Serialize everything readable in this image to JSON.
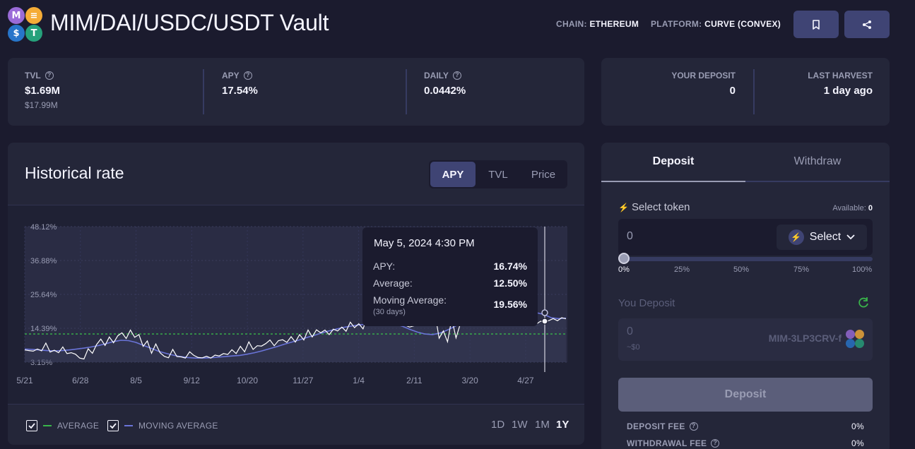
{
  "header": {
    "title": "MIM/DAI/USDC/USDT Vault",
    "chain_label": "CHAIN:",
    "chain_value": "ETHEREUM",
    "platform_label": "PLATFORM:",
    "platform_value": "CURVE (CONVEX)",
    "coins": [
      "MIM",
      "DAI",
      "USDC",
      "USDT"
    ]
  },
  "stats": {
    "tvl_label": "TVL",
    "tvl_value": "$1.69M",
    "tvl_sub": "$17.99M",
    "apy_label": "APY",
    "apy_value": "17.54%",
    "daily_label": "DAILY",
    "daily_value": "0.0442%"
  },
  "user": {
    "deposit_label": "YOUR DEPOSIT",
    "deposit_value": "0",
    "harvest_label": "LAST HARVEST",
    "harvest_value": "1 day ago"
  },
  "history": {
    "title": "Historical rate",
    "tabs": [
      "APY",
      "TVL",
      "Price"
    ],
    "active_tab": "APY",
    "legend_average": "AVERAGE",
    "legend_moving": "MOVING AVERAGE",
    "ranges": [
      "1D",
      "1W",
      "1M",
      "1Y"
    ],
    "active_range": "1Y"
  },
  "chart_data": {
    "type": "line",
    "yticks": [
      "48.12%",
      "36.88%",
      "25.64%",
      "14.39%",
      "3.15%"
    ],
    "ylim": [
      3.15,
      48.12
    ],
    "xticks": [
      "5/21",
      "6/28",
      "8/5",
      "9/12",
      "10/20",
      "11/27",
      "1/4",
      "2/11",
      "3/20",
      "4/27"
    ],
    "average": 12.5,
    "series": [
      {
        "name": "APY",
        "values": [
          7.2,
          7.0,
          6.8,
          7.5,
          6.9,
          9.5,
          6.5,
          7.1,
          6.3,
          8.2,
          6.0,
          6.3,
          5.8,
          4.5,
          4.2,
          7.6,
          6.1,
          9.0,
          10.8,
          8.7,
          11.5,
          9.6,
          11.9,
          12.9,
          11.0,
          13.8,
          11.4,
          12.3,
          8.4,
          10.2,
          6.1,
          9.2,
          6.3,
          5.1,
          4.6,
          7.4,
          5.0,
          4.9,
          4.5,
          6.6,
          5.4,
          4.7,
          4.6,
          5.1,
          4.5,
          5.5,
          5.2,
          6.0,
          5.7,
          7.3,
          6.0,
          8.4,
          6.6,
          9.9,
          7.4,
          8.6,
          8.5,
          9.3,
          10.5,
          8.6,
          10.3,
          10.6,
          9.7,
          11.6,
          9.8,
          12.3,
          10.5,
          13.8,
          11.5,
          13.9,
          12.9,
          13.8,
          12.3,
          14.1,
          13.5,
          14.8,
          13.4,
          16.4,
          14.6,
          15.9,
          14.2,
          18.0,
          15.6,
          16.7,
          15.4,
          17.5,
          16.2,
          18.6,
          16.9,
          16.0,
          15.4,
          14.8,
          15.2,
          17.8,
          19.2,
          17.6,
          16.5,
          19.5,
          11.1,
          13.5,
          9.9,
          17.6,
          11.2,
          15.8,
          17.2,
          18.9,
          17.0,
          18.6,
          19.7,
          20.1,
          19.5,
          21.6,
          20.8,
          19.0,
          22.5,
          21.3,
          20.0,
          18.8,
          17.5,
          16.9,
          16.4,
          15.8,
          16.74,
          16.5,
          17.0,
          17.6,
          16.9,
          17.9,
          17.54
        ],
        "color": "#ffffff"
      },
      {
        "name": "Moving Average",
        "values": [
          7.5,
          7.4,
          7.2,
          7.0,
          6.9,
          7.0,
          7.2,
          7.5,
          7.8,
          8.2,
          8.7,
          9.3,
          10.0,
          10.4,
          10.3,
          9.7,
          8.7,
          7.8,
          6.8,
          6.1,
          5.5,
          5.0,
          4.7,
          4.5,
          4.5,
          4.6,
          4.8,
          5.0,
          5.2,
          5.4,
          5.8,
          6.3,
          6.9,
          7.6,
          8.3,
          9.1,
          9.8,
          10.5,
          11.3,
          12.0,
          12.8,
          13.5,
          14.1,
          14.7,
          15.1,
          15.5,
          15.7,
          15.9,
          16.0,
          16.0,
          15.7,
          15.0,
          14.0,
          13.1,
          12.5,
          12.3,
          12.8,
          13.8,
          15.0,
          16.2,
          17.2,
          18.0,
          18.6,
          19.2,
          19.6,
          19.8,
          19.6,
          19.3,
          18.9,
          19.56,
          19.0,
          17.9,
          17.6,
          17.8
        ],
        "color": "#6a74d8"
      }
    ],
    "tooltip": {
      "date": "May 5, 2024 4:30 PM",
      "apy_label": "APY:",
      "apy_value": "16.74%",
      "avg_label": "Average:",
      "avg_value": "12.50%",
      "mavg_label": "Moving Average:",
      "mavg_sub": "(30 days)",
      "mavg_value": "19.56%"
    }
  },
  "side": {
    "tab_deposit": "Deposit",
    "tab_withdraw": "Withdraw",
    "select_token_label": "Select token",
    "available_label": "Available:",
    "available_value": "0",
    "amount_value": "0",
    "select_label": "Select",
    "slider_labels": [
      "0%",
      "25%",
      "50%",
      "75%",
      "100%"
    ],
    "slider_value": 0,
    "you_deposit_label": "You Deposit",
    "you_deposit_value": "0",
    "you_deposit_usd": "~$0",
    "you_deposit_token": "MIM-3LP3CRV-f",
    "deposit_button": "Deposit",
    "deposit_fee_label": "DEPOSIT FEE",
    "deposit_fee_value": "0%",
    "withdrawal_fee_label": "WITHDRAWAL FEE",
    "withdrawal_fee_value": "0%"
  },
  "colors": {
    "background": "#1b1b2e",
    "card": "#242639",
    "button": "#3f4474",
    "muted": "#999cb3",
    "average_line": "#39b54a",
    "moving_average_line": "#6a74d8"
  }
}
